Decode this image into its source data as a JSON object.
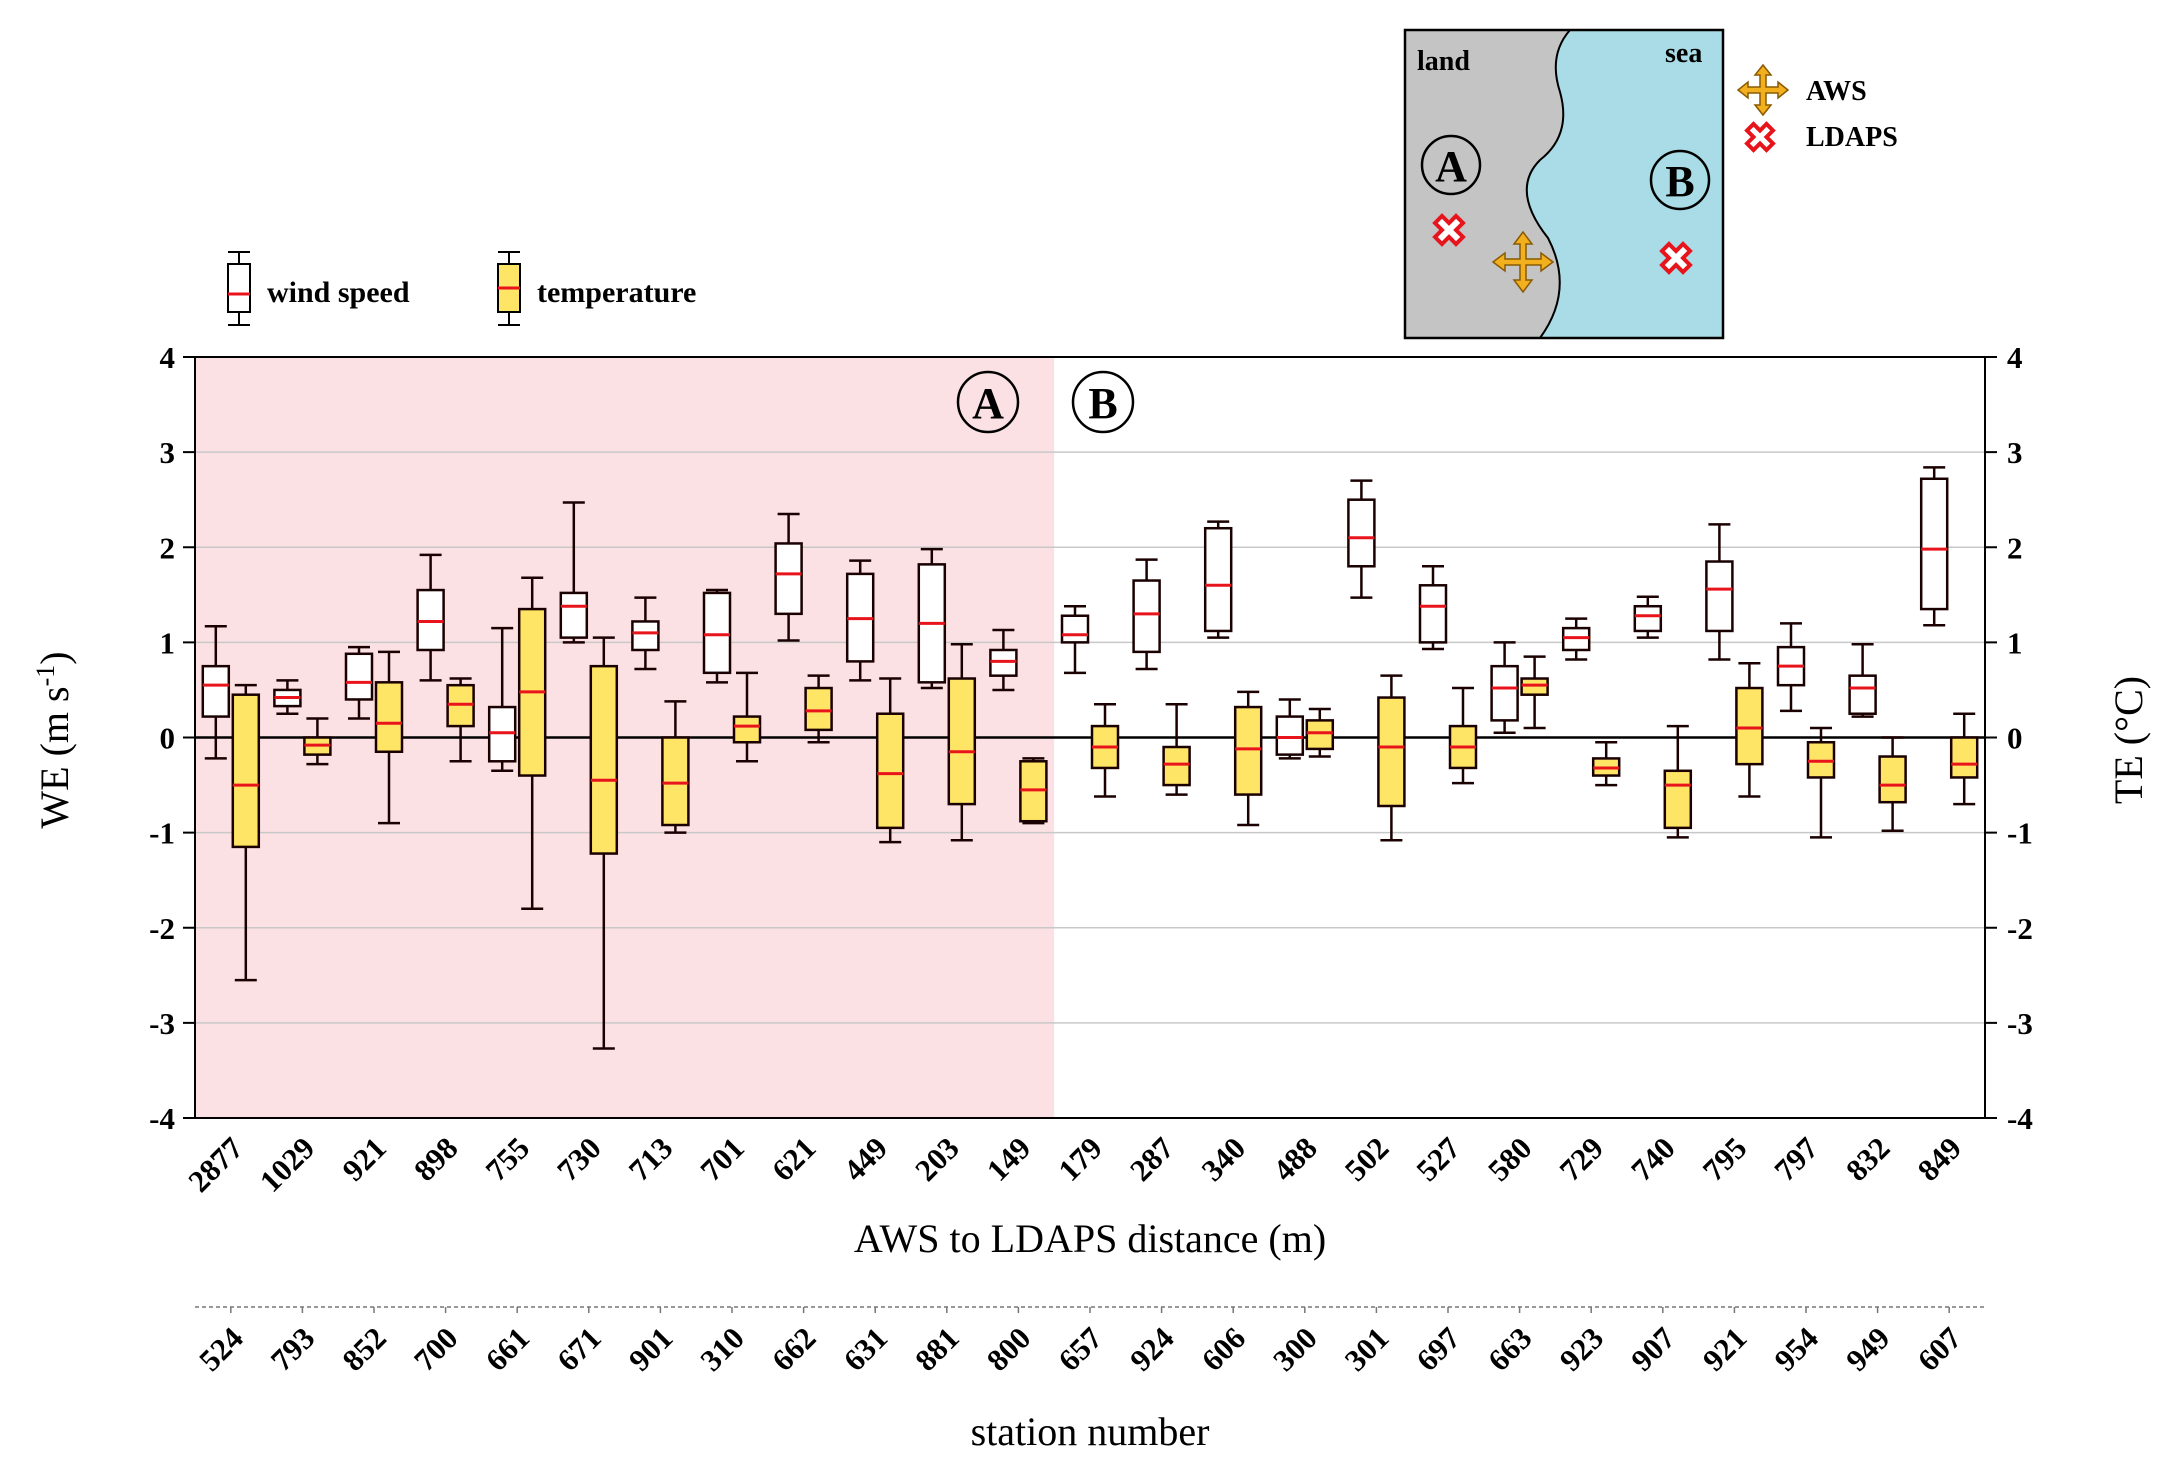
{
  "chart_data": {
    "type": "box",
    "ylabel_left": "WE (m s",
    "ylabel_left_sup": "-1",
    "ylabel_left_end": ")",
    "ylabel_right": "TE (°C)",
    "ylim": [
      -4,
      4
    ],
    "yticks": [
      "-4",
      "-3",
      "-2",
      "-1",
      "0",
      "1",
      "2",
      "3",
      "4"
    ],
    "xlabel": "AWS to LDAPS distance (m)",
    "xlabel2": "station number",
    "distances": [
      "2877",
      "1029",
      "921",
      "898",
      "755",
      "730",
      "713",
      "701",
      "621",
      "449",
      "203",
      "149",
      "179",
      "287",
      "340",
      "488",
      "502",
      "527",
      "580",
      "729",
      "740",
      "795",
      "797",
      "832",
      "849"
    ],
    "stations": [
      "524",
      "793",
      "852",
      "700",
      "661",
      "671",
      "901",
      "310",
      "662",
      "631",
      "881",
      "800",
      "657",
      "924",
      "606",
      "300",
      "301",
      "697",
      "663",
      "923",
      "907",
      "921",
      "954",
      "949",
      "607"
    ],
    "region_A_count": 12,
    "region_labels": {
      "a": "A",
      "b": "B"
    },
    "legend": {
      "wind": "wind speed",
      "temp": "temperature"
    },
    "inset": {
      "land": "land",
      "sea": "sea",
      "a": "A",
      "b": "B",
      "aws": "AWS",
      "ldaps": "LDAPS"
    },
    "colors": {
      "regionA": "#fbe1e3",
      "tempFill": "#ffe566",
      "median": "#e8141c",
      "sea": "#a9dce6",
      "land": "#c4c4c4",
      "aws": "#f2b01e"
    },
    "series": [
      {
        "name": "wind speed",
        "boxes": [
          [
            -0.22,
            0.22,
            0.55,
            0.75,
            1.17
          ],
          [
            0.25,
            0.33,
            0.42,
            0.5,
            0.6
          ],
          [
            0.2,
            0.4,
            0.58,
            0.88,
            0.95
          ],
          [
            0.6,
            0.92,
            1.22,
            1.55,
            1.92
          ],
          [
            -0.35,
            -0.25,
            0.05,
            0.32,
            1.15
          ],
          [
            1.0,
            1.05,
            1.38,
            1.52,
            2.47
          ],
          [
            0.72,
            0.92,
            1.1,
            1.22,
            1.47
          ],
          [
            0.58,
            0.68,
            1.08,
            1.52,
            1.55
          ],
          [
            1.02,
            1.3,
            1.72,
            2.04,
            2.35
          ],
          [
            0.6,
            0.8,
            1.25,
            1.72,
            1.86
          ],
          [
            0.52,
            0.58,
            1.2,
            1.82,
            1.98
          ],
          [
            0.5,
            0.65,
            0.8,
            0.92,
            1.13
          ],
          [
            0.68,
            1.0,
            1.08,
            1.28,
            1.38
          ],
          [
            0.72,
            0.9,
            1.3,
            1.65,
            1.87
          ],
          [
            1.05,
            1.12,
            1.6,
            2.2,
            2.27
          ],
          [
            -0.22,
            -0.18,
            0.0,
            0.22,
            0.4
          ],
          [
            1.47,
            1.8,
            2.1,
            2.5,
            2.7
          ],
          [
            0.93,
            1.0,
            1.38,
            1.6,
            1.8
          ],
          [
            0.05,
            0.18,
            0.52,
            0.75,
            1.0
          ],
          [
            0.82,
            0.92,
            1.05,
            1.15,
            1.25
          ],
          [
            1.05,
            1.12,
            1.28,
            1.38,
            1.48
          ],
          [
            0.82,
            1.12,
            1.56,
            1.85,
            2.24
          ],
          [
            0.28,
            0.55,
            0.75,
            0.95,
            1.2
          ],
          [
            0.22,
            0.25,
            0.52,
            0.65,
            0.98
          ],
          [
            1.18,
            1.35,
            1.98,
            2.72,
            2.84
          ]
        ]
      },
      {
        "name": "temperature",
        "boxes": [
          [
            -2.55,
            -1.15,
            -0.5,
            0.45,
            0.55
          ],
          [
            -0.28,
            -0.18,
            -0.08,
            0.0,
            0.2
          ],
          [
            -0.9,
            -0.15,
            0.15,
            0.58,
            0.9
          ],
          [
            -0.25,
            0.12,
            0.35,
            0.55,
            0.62
          ],
          [
            -1.8,
            -0.4,
            0.48,
            1.35,
            1.68
          ],
          [
            -3.27,
            -1.22,
            -0.45,
            0.75,
            1.05
          ],
          [
            -1.0,
            -0.92,
            -0.48,
            0.0,
            0.38
          ],
          [
            -0.25,
            -0.05,
            0.12,
            0.22,
            0.68
          ],
          [
            -0.05,
            0.08,
            0.28,
            0.52,
            0.65
          ],
          [
            -1.1,
            -0.95,
            -0.38,
            0.25,
            0.62
          ],
          [
            -1.08,
            -0.7,
            -0.15,
            0.62,
            0.98
          ],
          [
            -0.9,
            -0.88,
            -0.55,
            -0.25,
            -0.22
          ],
          [
            -0.62,
            -0.32,
            -0.1,
            0.12,
            0.35
          ],
          [
            -0.6,
            -0.5,
            -0.28,
            -0.1,
            0.35
          ],
          [
            -0.92,
            -0.6,
            -0.12,
            0.32,
            0.48
          ],
          [
            -0.2,
            -0.12,
            0.05,
            0.18,
            0.3
          ],
          [
            -1.08,
            -0.72,
            -0.1,
            0.42,
            0.65
          ],
          [
            -0.48,
            -0.32,
            -0.1,
            0.12,
            0.52
          ],
          [
            0.1,
            0.45,
            0.55,
            0.62,
            0.85
          ],
          [
            -0.5,
            -0.4,
            -0.32,
            -0.22,
            -0.05
          ],
          [
            -1.05,
            -0.95,
            -0.5,
            -0.35,
            0.12
          ],
          [
            -0.62,
            -0.28,
            0.1,
            0.52,
            0.78
          ],
          [
            -1.05,
            -0.42,
            -0.25,
            -0.05,
            0.1
          ],
          [
            -0.98,
            -0.68,
            -0.5,
            -0.2,
            0.0
          ],
          [
            -0.7,
            -0.42,
            -0.28,
            0.0,
            0.25
          ]
        ]
      }
    ]
  }
}
